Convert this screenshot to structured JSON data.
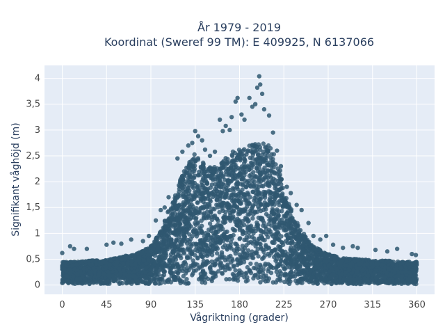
{
  "chart_data": {
    "type": "scatter",
    "title": [
      "År 1979 - 2019",
      "Koordinat (Sweref 99 TM): E 409925, N 6137066"
    ],
    "xlabel": "Vågriktning (grader)",
    "ylabel": "Signifikant våghöjd (m)",
    "xlim": [
      -18,
      378
    ],
    "ylim": [
      -0.18,
      4.25
    ],
    "x_ticks": [
      0,
      45,
      90,
      135,
      180,
      225,
      270,
      315,
      360
    ],
    "x_tick_labels": [
      "0",
      "45",
      "90",
      "135",
      "180",
      "225",
      "270",
      "315",
      "360"
    ],
    "y_ticks": [
      0,
      0.5,
      1,
      1.5,
      2,
      2.5,
      3,
      3.5,
      4
    ],
    "y_tick_labels": [
      "0",
      "0,5",
      "1",
      "1,5",
      "2",
      "2,5",
      "3",
      "3,5",
      "4"
    ],
    "grid": true,
    "marker_color": "#2f5870",
    "plot_background": "#e5ecf6",
    "envelope": {
      "x": [
        0,
        15,
        30,
        45,
        60,
        75,
        90,
        100,
        110,
        120,
        130,
        135,
        140,
        150,
        160,
        170,
        180,
        190,
        200,
        210,
        220,
        225,
        230,
        240,
        250,
        260,
        270,
        285,
        300,
        315,
        330,
        345,
        360
      ],
      "y_max": [
        0.45,
        0.45,
        0.48,
        0.48,
        0.55,
        0.6,
        0.75,
        1.05,
        1.55,
        2.05,
        2.45,
        2.55,
        2.4,
        2.3,
        2.35,
        2.55,
        2.65,
        2.7,
        2.75,
        2.75,
        2.3,
        2.0,
        1.6,
        1.15,
        0.85,
        0.7,
        0.6,
        0.52,
        0.5,
        0.48,
        0.47,
        0.45,
        0.45
      ],
      "y_min": 0.02
    },
    "outliers": [
      {
        "x": 0,
        "y": 0.62
      },
      {
        "x": 8,
        "y": 0.75
      },
      {
        "x": 12,
        "y": 0.7
      },
      {
        "x": 25,
        "y": 0.7
      },
      {
        "x": 45,
        "y": 0.78
      },
      {
        "x": 52,
        "y": 0.82
      },
      {
        "x": 60,
        "y": 0.8
      },
      {
        "x": 70,
        "y": 0.88
      },
      {
        "x": 82,
        "y": 0.85
      },
      {
        "x": 88,
        "y": 0.95
      },
      {
        "x": 95,
        "y": 1.25
      },
      {
        "x": 100,
        "y": 1.45
      },
      {
        "x": 104,
        "y": 1.5
      },
      {
        "x": 108,
        "y": 1.7
      },
      {
        "x": 117,
        "y": 2.45
      },
      {
        "x": 122,
        "y": 2.58
      },
      {
        "x": 128,
        "y": 2.7
      },
      {
        "x": 132,
        "y": 2.75
      },
      {
        "x": 135,
        "y": 2.98
      },
      {
        "x": 138,
        "y": 2.88
      },
      {
        "x": 142,
        "y": 2.8
      },
      {
        "x": 145,
        "y": 2.62
      },
      {
        "x": 150,
        "y": 2.5
      },
      {
        "x": 155,
        "y": 2.58
      },
      {
        "x": 160,
        "y": 3.2
      },
      {
        "x": 163,
        "y": 2.98
      },
      {
        "x": 166,
        "y": 3.08
      },
      {
        "x": 170,
        "y": 3.0
      },
      {
        "x": 172,
        "y": 3.25
      },
      {
        "x": 176,
        "y": 3.55
      },
      {
        "x": 178,
        "y": 3.62
      },
      {
        "x": 182,
        "y": 3.3
      },
      {
        "x": 185,
        "y": 3.2
      },
      {
        "x": 190,
        "y": 3.62
      },
      {
        "x": 193,
        "y": 3.45
      },
      {
        "x": 196,
        "y": 3.5
      },
      {
        "x": 198,
        "y": 3.82
      },
      {
        "x": 200,
        "y": 4.04
      },
      {
        "x": 201,
        "y": 3.88
      },
      {
        "x": 203,
        "y": 3.7
      },
      {
        "x": 205,
        "y": 3.4
      },
      {
        "x": 210,
        "y": 3.28
      },
      {
        "x": 214,
        "y": 2.95
      },
      {
        "x": 218,
        "y": 2.6
      },
      {
        "x": 222,
        "y": 2.3
      },
      {
        "x": 228,
        "y": 1.9
      },
      {
        "x": 232,
        "y": 1.78
      },
      {
        "x": 238,
        "y": 1.55
      },
      {
        "x": 243,
        "y": 1.45
      },
      {
        "x": 250,
        "y": 1.2
      },
      {
        "x": 255,
        "y": 0.95
      },
      {
        "x": 262,
        "y": 0.88
      },
      {
        "x": 268,
        "y": 0.95
      },
      {
        "x": 275,
        "y": 0.78
      },
      {
        "x": 285,
        "y": 0.72
      },
      {
        "x": 295,
        "y": 0.75
      },
      {
        "x": 300,
        "y": 0.72
      },
      {
        "x": 318,
        "y": 0.68
      },
      {
        "x": 330,
        "y": 0.65
      },
      {
        "x": 340,
        "y": 0.7
      },
      {
        "x": 355,
        "y": 0.6
      },
      {
        "x": 359,
        "y": 0.58
      }
    ]
  }
}
